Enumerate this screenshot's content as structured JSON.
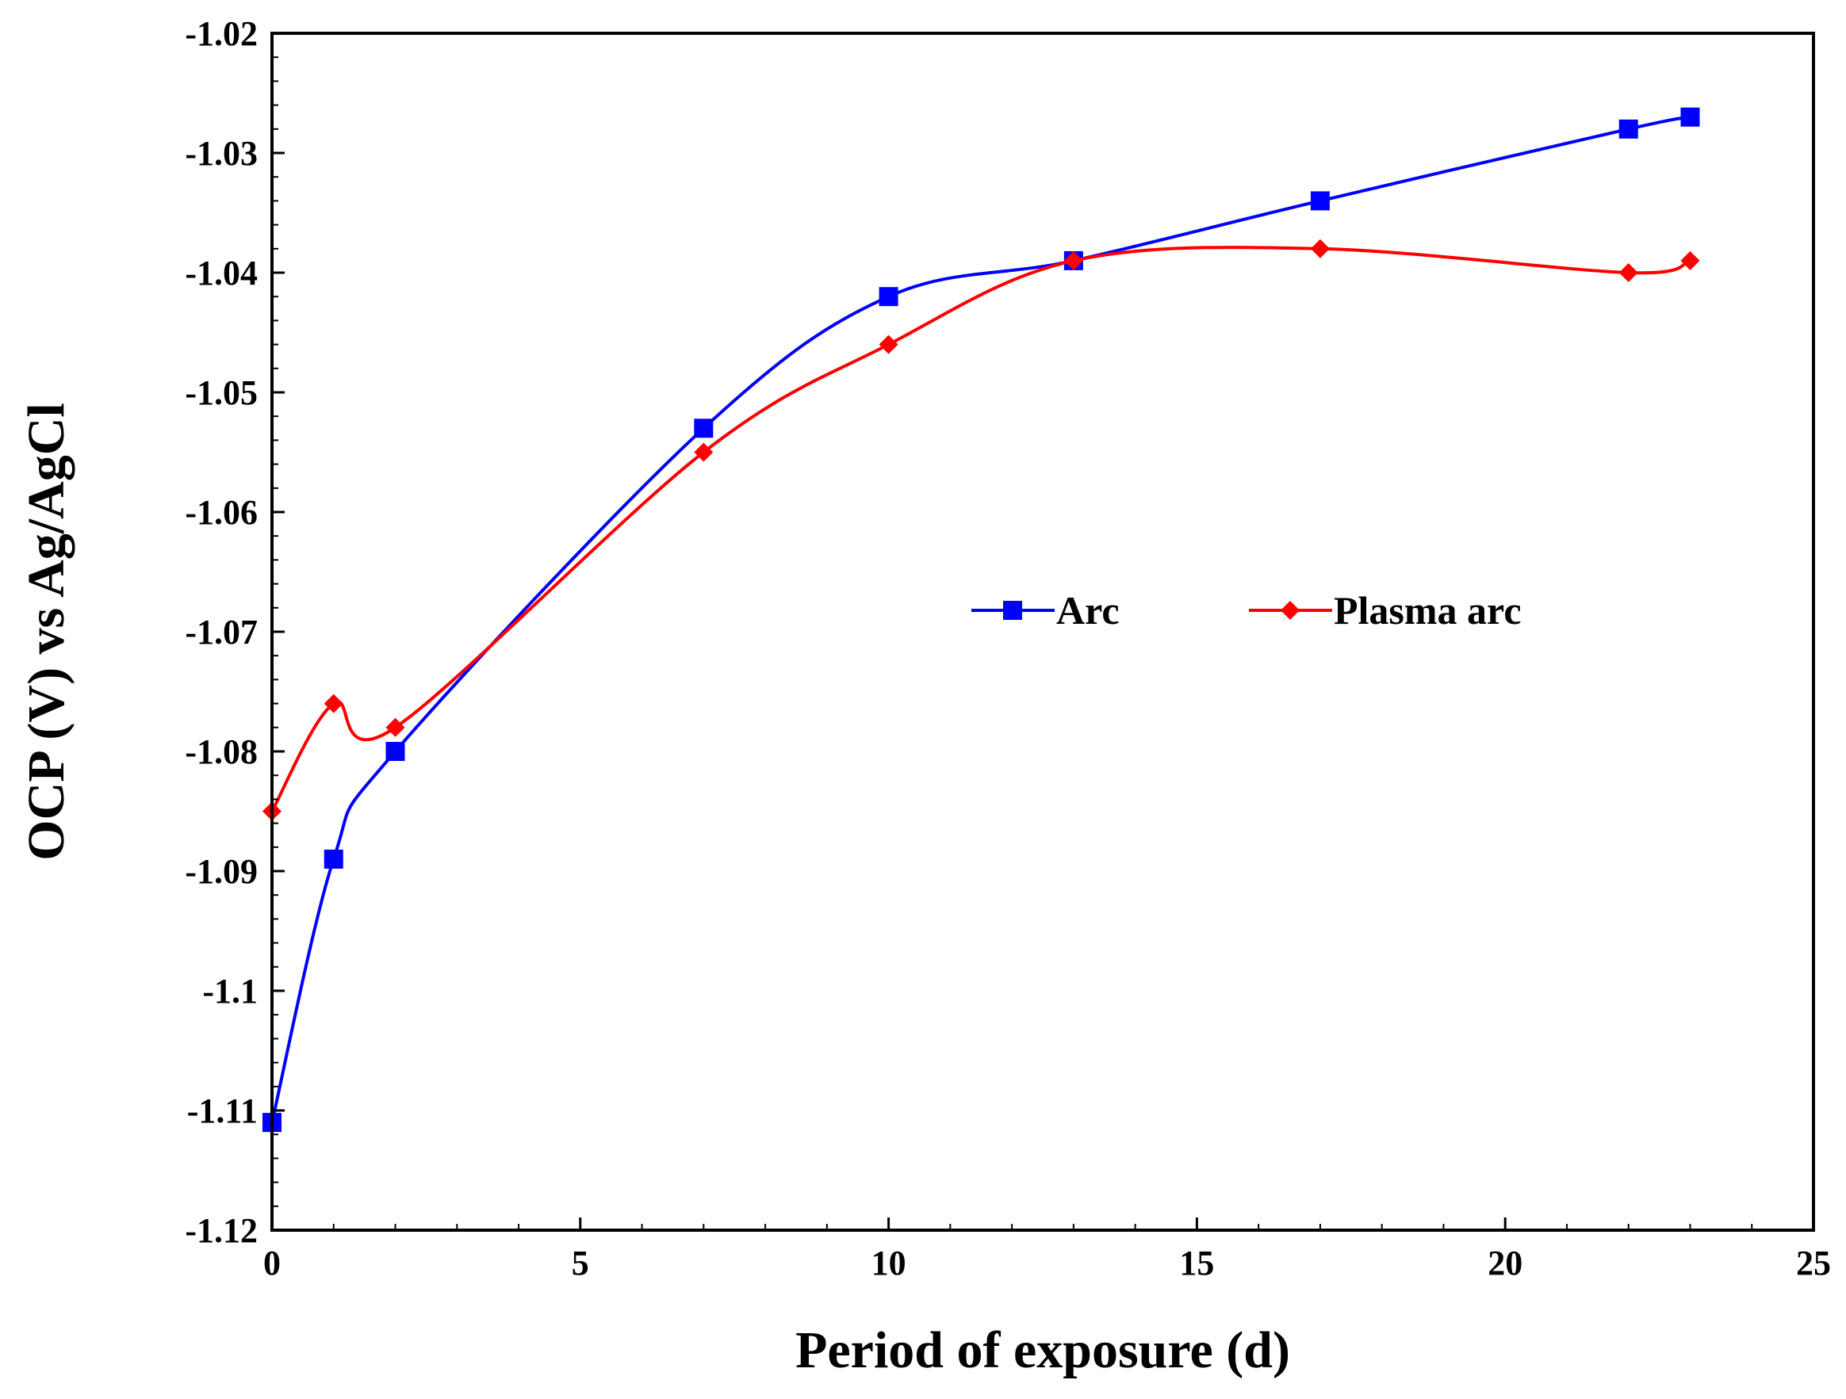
{
  "chart_data": {
    "type": "line",
    "title": "",
    "xlabel": "Period of exposure (d)",
    "ylabel": "OCP (V) vs Ag/AgCl",
    "xlim": [
      0,
      25
    ],
    "ylim": [
      -1.12,
      -1.02
    ],
    "x_ticks": [
      0,
      5,
      10,
      15,
      20,
      25
    ],
    "x_tick_labels": [
      "0",
      "5",
      "10",
      "15",
      "20",
      "25"
    ],
    "y_ticks": [
      -1.02,
      -1.03,
      -1.04,
      -1.05,
      -1.06,
      -1.07,
      -1.08,
      -1.09,
      -1.1,
      -1.11,
      -1.12
    ],
    "y_tick_labels": [
      "-1.02",
      "-1.03",
      "-1.04",
      "-1.05",
      "-1.06",
      "-1.07",
      "-1.08",
      "-1.09",
      "-1.1",
      "-1.11",
      "-1.12"
    ],
    "grid": false,
    "legend_position": "center-right",
    "series": [
      {
        "name": "Arc",
        "color": "#0000ff",
        "marker": "square",
        "x": [
          0,
          1,
          2,
          7,
          10,
          13,
          17,
          22,
          23
        ],
        "y": [
          -1.111,
          -1.089,
          -1.08,
          -1.053,
          -1.042,
          -1.039,
          -1.034,
          -1.028,
          -1.027
        ]
      },
      {
        "name": "Plasma arc",
        "color": "#ff0000",
        "marker": "diamond",
        "x": [
          0,
          1,
          2,
          7,
          10,
          13,
          17,
          22,
          23
        ],
        "y": [
          -1.085,
          -1.076,
          -1.078,
          -1.055,
          -1.046,
          -1.039,
          -1.038,
          -1.04,
          -1.039
        ]
      }
    ]
  }
}
